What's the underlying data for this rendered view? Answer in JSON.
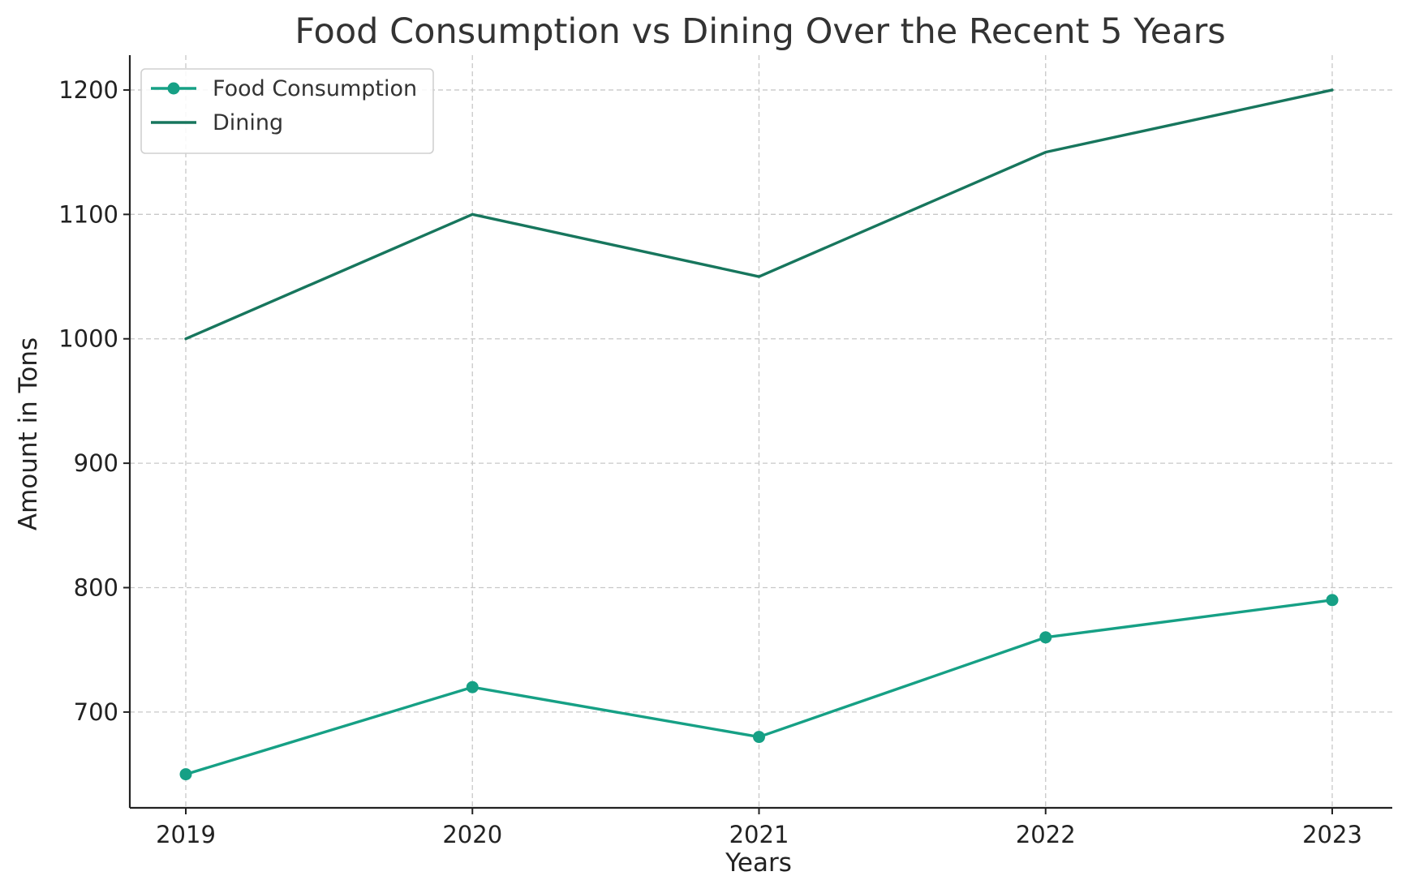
{
  "chart_data": {
    "type": "line",
    "title": "Food Consumption vs Dining Over the Recent 5 Years",
    "xlabel": "Years",
    "ylabel": "Amount in Tons",
    "categories": [
      "2019",
      "2020",
      "2021",
      "2022",
      "2023"
    ],
    "ylim": [
      623,
      1228
    ],
    "yticks": [
      700,
      800,
      900,
      1000,
      1100,
      1200
    ],
    "grid": true,
    "legend_position": "top-left",
    "series": [
      {
        "name": "Food Consumption",
        "values": [
          650,
          720,
          680,
          760,
          790
        ],
        "color": "#16a085",
        "marker": "circle"
      },
      {
        "name": "Dining",
        "values": [
          1000,
          1100,
          1050,
          1150,
          1200
        ],
        "color": "#17765d",
        "marker": "none"
      }
    ]
  }
}
